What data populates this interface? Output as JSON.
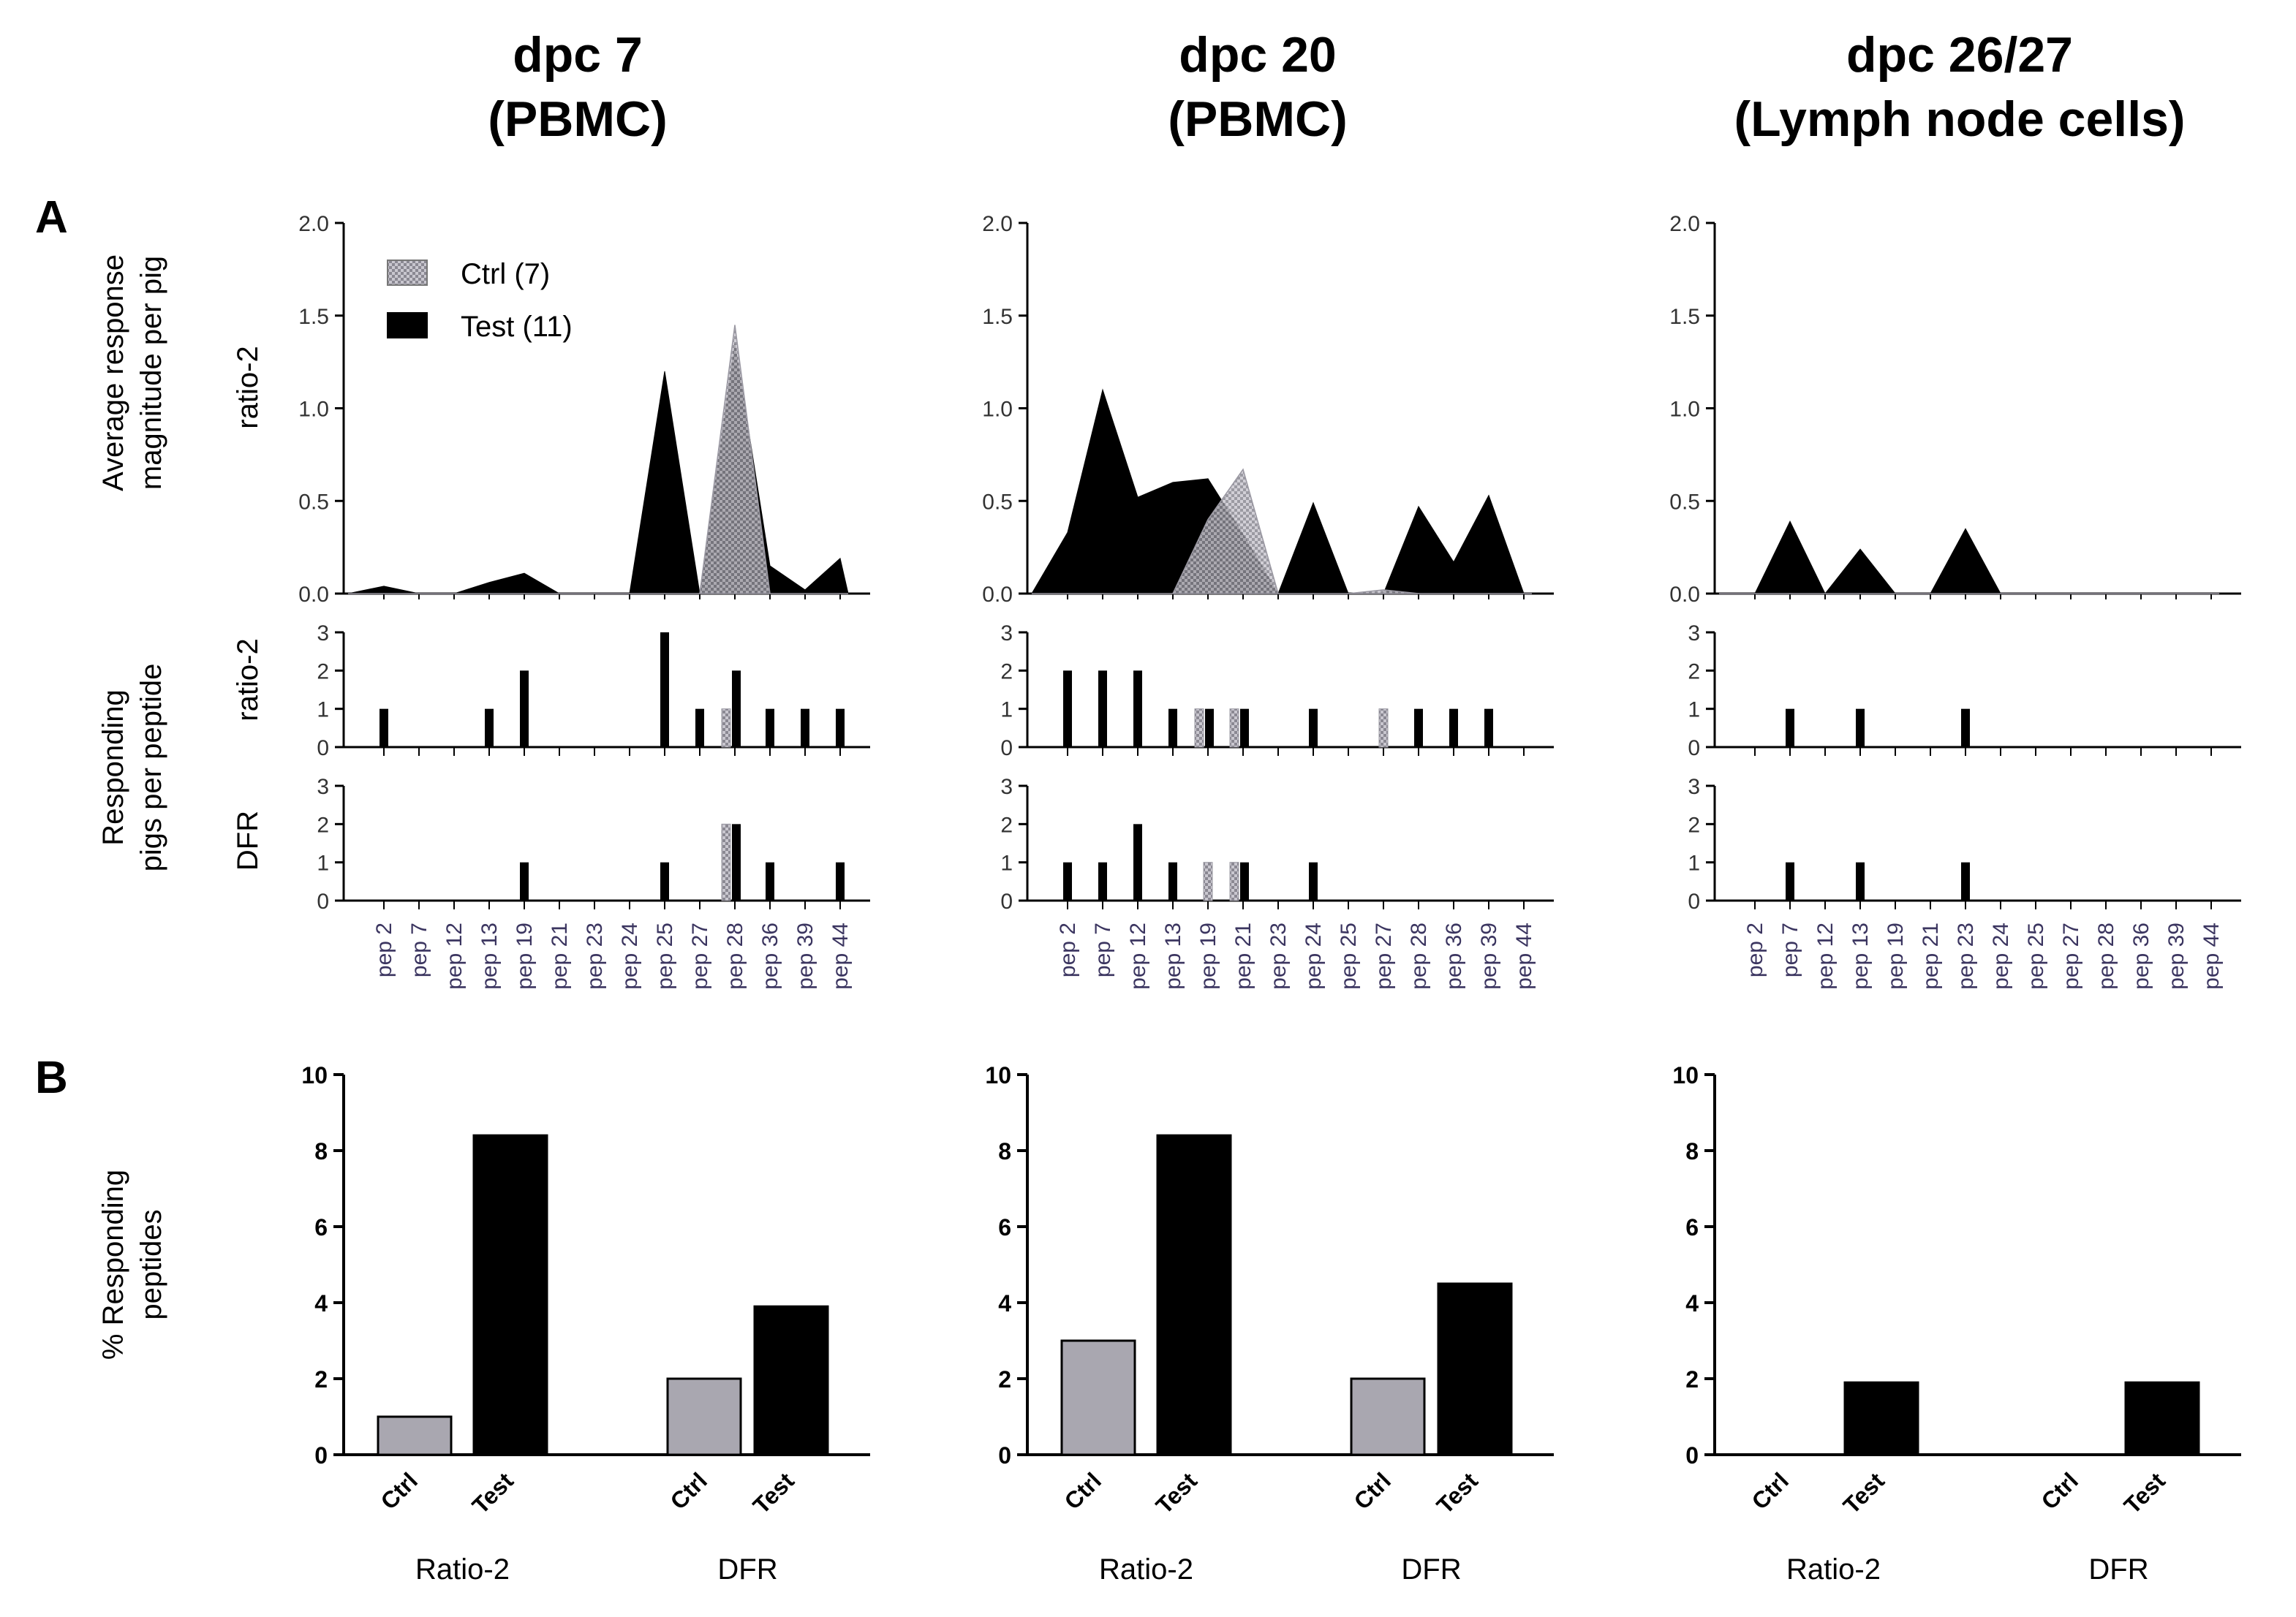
{
  "panel_letters": {
    "a": "A",
    "b": "B"
  },
  "y_titles": {
    "a_top_1": "Average response",
    "a_top_2": "magnitude per pig",
    "a_bottom_1": "Responding",
    "a_bottom_2": "pigs per peptide",
    "b_1": "% Responding",
    "b_2": "peptides",
    "row_ratio": "ratio-2",
    "row_dfr": "DFR"
  },
  "legend": {
    "ctrl": "Ctrl (7)",
    "test": "Test (11)"
  },
  "colors": {
    "ctrl": "#a9a7b0",
    "test": "#000000",
    "axis": "#000000"
  },
  "chart_data": [
    {
      "type": "area",
      "column": "dpc 7 (PBMC)",
      "title_line1": "dpc 7",
      "title_line2": "(PBMC)",
      "categories": [
        "pep 2",
        "pep 7",
        "pep 12",
        "pep 13",
        "pep 19",
        "pep 21",
        "pep 23",
        "pep 24",
        "pep 25",
        "pep 27",
        "pep 28",
        "pep 36",
        "pep 39",
        "pep 44"
      ],
      "yticks": [
        "0.0",
        "0.5",
        "1.0",
        "1.5",
        "2.0"
      ],
      "ylim": [
        0,
        2
      ],
      "ylabel": "Average response magnitude per pig (ratio-2)",
      "series": [
        {
          "name": "Ctrl (7)",
          "values": [
            0,
            0,
            0,
            0,
            0,
            0,
            0,
            0,
            0,
            0,
            1.45,
            0,
            0,
            0
          ]
        },
        {
          "name": "Test (11)",
          "values": [
            0.04,
            0,
            0,
            0.06,
            0.11,
            0,
            0,
            0,
            1.2,
            0,
            1.35,
            0.15,
            0.02,
            0.19
          ]
        }
      ],
      "counts_ratio": {
        "yticks": [
          "0",
          "1",
          "2",
          "3"
        ],
        "ylim": [
          0,
          3
        ],
        "ctrl": [
          0,
          0,
          0,
          0,
          0,
          0,
          0,
          0,
          0,
          0,
          1,
          0,
          0,
          0
        ],
        "test": [
          1,
          0,
          0,
          1,
          2,
          0,
          0,
          0,
          3,
          1,
          2,
          1,
          1,
          1
        ]
      },
      "counts_dfr": {
        "yticks": [
          "0",
          "1",
          "2",
          "3"
        ],
        "ylim": [
          0,
          3
        ],
        "ctrl": [
          0,
          0,
          0,
          0,
          0,
          0,
          0,
          0,
          0,
          0,
          2,
          0,
          0,
          0
        ],
        "test": [
          0,
          0,
          0,
          0,
          1,
          0,
          0,
          0,
          1,
          0,
          2,
          1,
          0,
          1
        ]
      },
      "percent": {
        "yticks": [
          "0",
          "2",
          "4",
          "6",
          "8",
          "10"
        ],
        "ylim": [
          0,
          10
        ],
        "groups": [
          "Ratio-2",
          "DFR"
        ],
        "bar_labels": [
          "Ctrl",
          "Test"
        ],
        "ctrl": [
          1.0,
          2.0
        ],
        "test": [
          8.4,
          3.9
        ]
      }
    },
    {
      "type": "area",
      "column": "dpc 20 (PBMC)",
      "title_line1": "dpc 20",
      "title_line2": "(PBMC)",
      "categories": [
        "pep 2",
        "pep 7",
        "pep 12",
        "pep 13",
        "pep 19",
        "pep 21",
        "pep 23",
        "pep 24",
        "pep 25",
        "pep 27",
        "pep 28",
        "pep 36",
        "pep 39",
        "pep 44"
      ],
      "yticks": [
        "0.0",
        "0.5",
        "1.0",
        "1.5",
        "2.0"
      ],
      "ylim": [
        0,
        2
      ],
      "ylabel": "Average response magnitude per pig (ratio-2)",
      "series": [
        {
          "name": "Ctrl (7)",
          "values": [
            0,
            0,
            0,
            0,
            0.4,
            0.67,
            0,
            0,
            0,
            0.02,
            0,
            0,
            0,
            0
          ]
        },
        {
          "name": "Test (11)",
          "values": [
            0.33,
            1.1,
            0.52,
            0.6,
            0.62,
            0.32,
            0,
            0.49,
            0,
            0,
            0.47,
            0.17,
            0.53,
            0
          ]
        }
      ],
      "counts_ratio": {
        "yticks": [
          "0",
          "1",
          "2",
          "3"
        ],
        "ylim": [
          0,
          3
        ],
        "ctrl": [
          0,
          0,
          0,
          0,
          1,
          1,
          0,
          0,
          0,
          1,
          0,
          0,
          0,
          0
        ],
        "test": [
          2,
          2,
          2,
          1,
          1,
          1,
          0,
          1,
          0,
          0,
          1,
          1,
          1,
          0
        ]
      },
      "counts_dfr": {
        "yticks": [
          "0",
          "1",
          "2",
          "3"
        ],
        "ylim": [
          0,
          3
        ],
        "ctrl": [
          0,
          0,
          0,
          0,
          1,
          1,
          0,
          0,
          0,
          0,
          0,
          0,
          0,
          0
        ],
        "test": [
          1,
          1,
          2,
          1,
          0,
          1,
          0,
          1,
          0,
          0,
          0,
          0,
          0,
          0
        ]
      },
      "percent": {
        "yticks": [
          "0",
          "2",
          "4",
          "6",
          "8",
          "10"
        ],
        "ylim": [
          0,
          10
        ],
        "groups": [
          "Ratio-2",
          "DFR"
        ],
        "bar_labels": [
          "Ctrl",
          "Test"
        ],
        "ctrl": [
          3.0,
          2.0
        ],
        "test": [
          8.4,
          4.5
        ]
      }
    },
    {
      "type": "area",
      "column": "dpc 26/27 (Lymph node cells)",
      "title_line1": "dpc 26/27",
      "title_line2": "(Lymph node cells)",
      "categories": [
        "pep 2",
        "pep 7",
        "pep 12",
        "pep 13",
        "pep 19",
        "pep 21",
        "pep 23",
        "pep 24",
        "pep 25",
        "pep 27",
        "pep 28",
        "pep 36",
        "pep 39",
        "pep 44"
      ],
      "yticks": [
        "0.0",
        "0.5",
        "1.0",
        "1.5",
        "2.0"
      ],
      "ylim": [
        0,
        2
      ],
      "ylabel": "Average response magnitude per pig (ratio-2)",
      "series": [
        {
          "name": "Ctrl (7)",
          "values": [
            0,
            0,
            0,
            0,
            0,
            0,
            0,
            0,
            0,
            0,
            0,
            0,
            0,
            0
          ]
        },
        {
          "name": "Test (11)",
          "values": [
            0,
            0.39,
            0,
            0.24,
            0,
            0,
            0.35,
            0,
            0,
            0,
            0,
            0,
            0,
            0
          ]
        }
      ],
      "counts_ratio": {
        "yticks": [
          "0",
          "1",
          "2",
          "3"
        ],
        "ylim": [
          0,
          3
        ],
        "ctrl": [
          0,
          0,
          0,
          0,
          0,
          0,
          0,
          0,
          0,
          0,
          0,
          0,
          0,
          0
        ],
        "test": [
          0,
          1,
          0,
          1,
          0,
          0,
          1,
          0,
          0,
          0,
          0,
          0,
          0,
          0
        ]
      },
      "counts_dfr": {
        "yticks": [
          "0",
          "1",
          "2",
          "3"
        ],
        "ylim": [
          0,
          3
        ],
        "ctrl": [
          0,
          0,
          0,
          0,
          0,
          0,
          0,
          0,
          0,
          0,
          0,
          0,
          0,
          0
        ],
        "test": [
          0,
          1,
          0,
          1,
          0,
          0,
          1,
          0,
          0,
          0,
          0,
          0,
          0,
          0
        ]
      },
      "percent": {
        "yticks": [
          "0",
          "2",
          "4",
          "6",
          "8",
          "10"
        ],
        "ylim": [
          0,
          10
        ],
        "groups": [
          "Ratio-2",
          "DFR"
        ],
        "bar_labels": [
          "Ctrl",
          "Test"
        ],
        "ctrl": [
          0,
          0
        ],
        "test": [
          1.9,
          1.9
        ]
      }
    }
  ]
}
